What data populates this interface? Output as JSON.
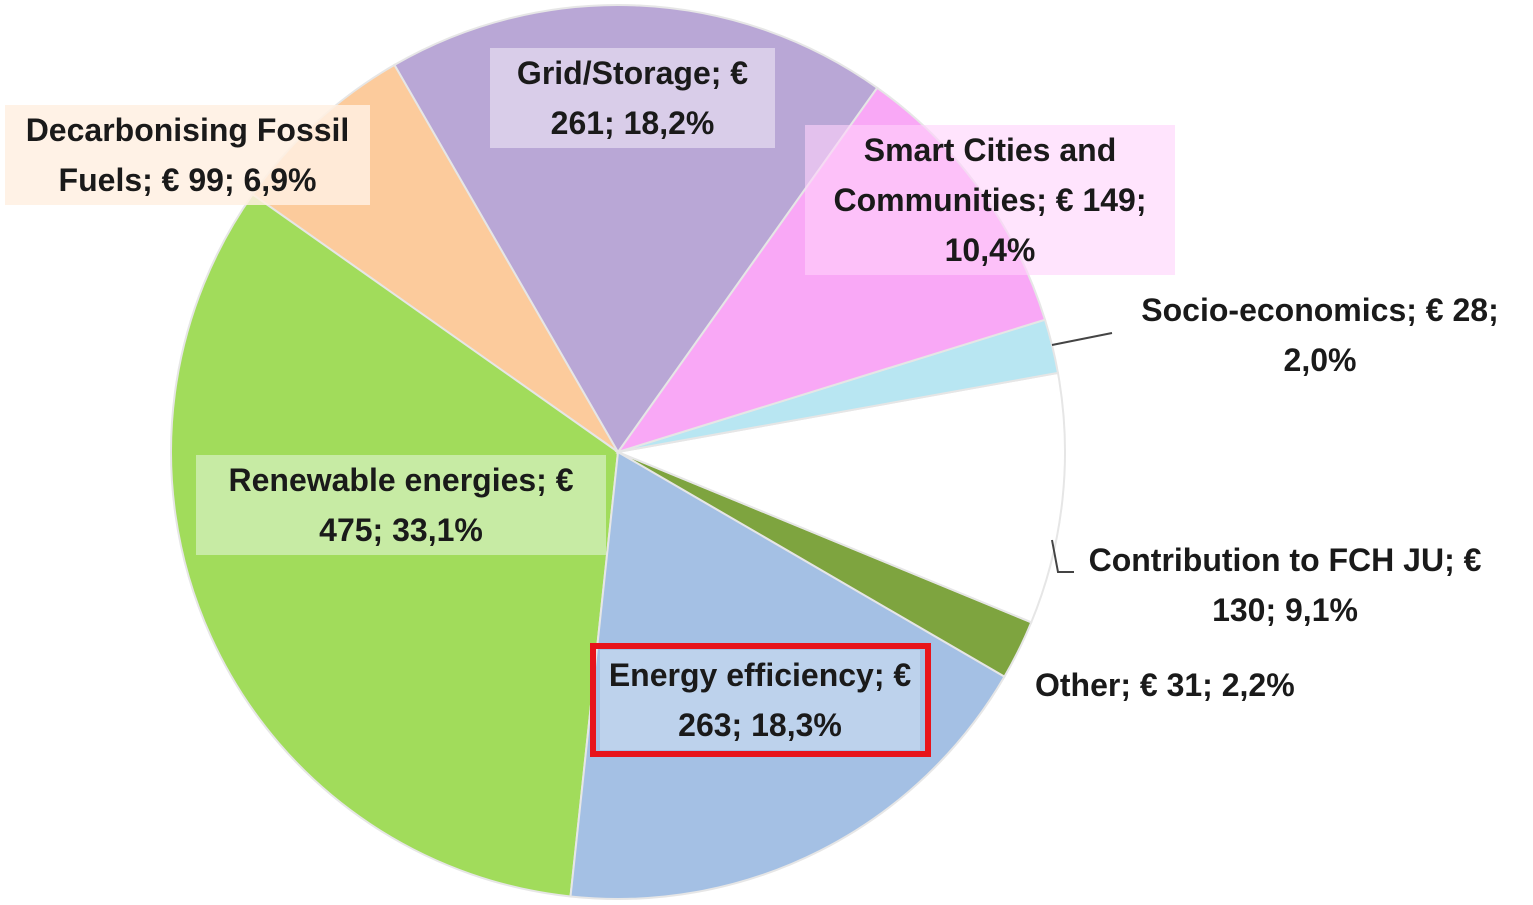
{
  "chart_data": {
    "type": "pie",
    "labels": [
      "Grid/Storage; € 261; 18,2%",
      "Smart Cities and Communities; € 149; 10,4%",
      "Socio-economics; € 28; 2,0%",
      "Contribution to FCH JU; € 130; 9,1%",
      "Other; € 31; 2,2%",
      "Energy efficiency; € 263; 18,3%",
      "Renewable energies; € 475; 33,1%",
      "Decarbonising Fossil Fuels; € 99; 6,9%"
    ],
    "values": [
      261,
      149,
      28,
      130,
      31,
      263,
      475,
      99
    ],
    "colors": [
      "#b9a7d6",
      "#f9a8f6",
      "#b8e6f2",
      "#ffffff",
      "#7ea43f",
      "#a4c0e4",
      "#a1dc5b",
      "#fccb9c"
    ]
  }
}
